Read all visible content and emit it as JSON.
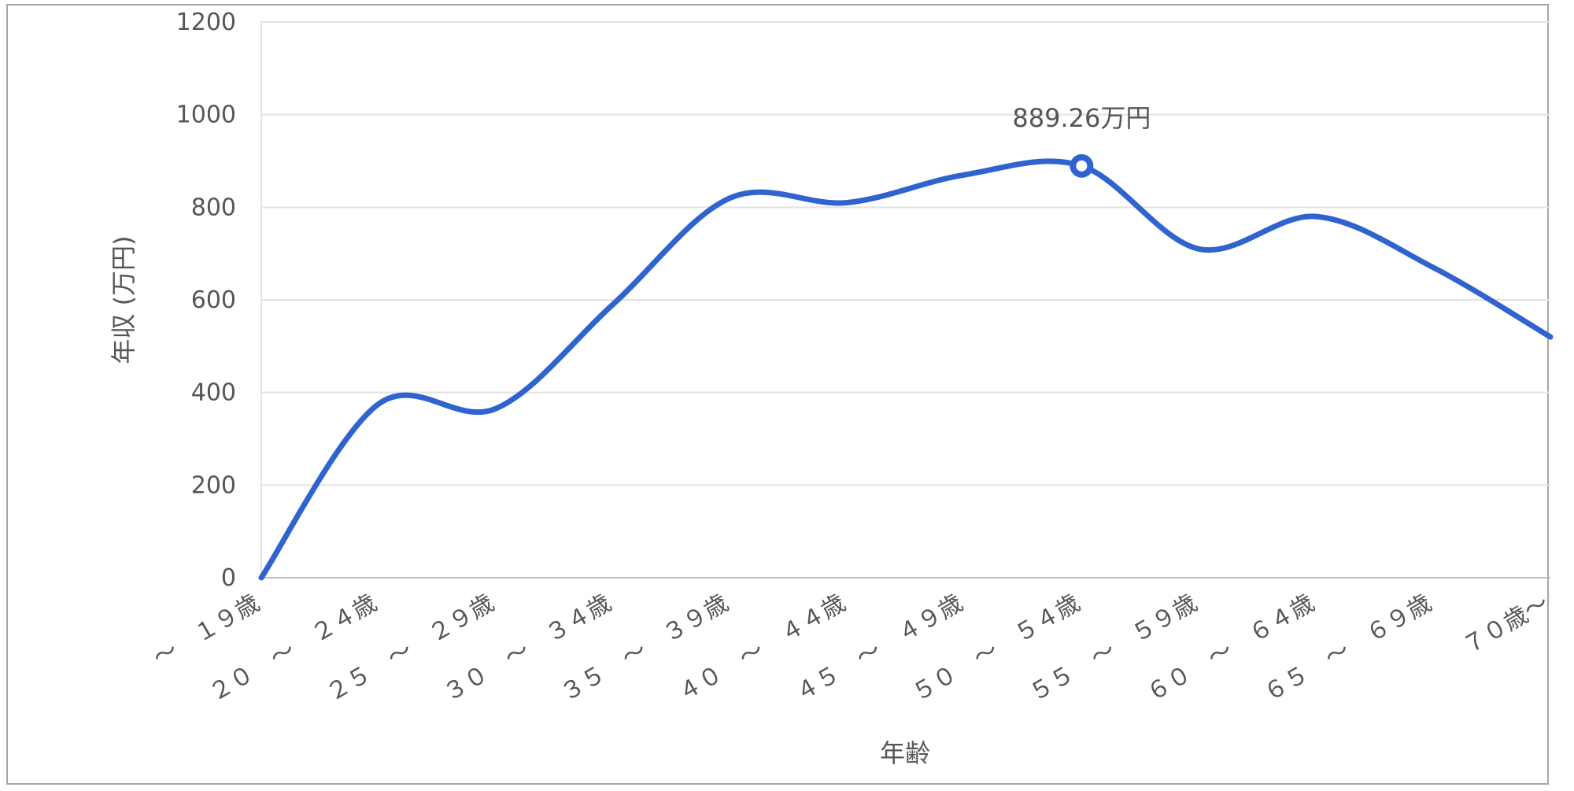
{
  "chart_data": {
    "type": "line",
    "xlabel": "年齢",
    "ylabel": "年収 (万円)",
    "ylim": [
      0,
      1200
    ],
    "yticks": [
      0,
      200,
      400,
      600,
      800,
      1000,
      1200
    ],
    "grid": true,
    "legend": "none",
    "line_color": "#2f63cf",
    "categories": [
      [
        "～　１９歳"
      ],
      [
        "２０　～　２４歳"
      ],
      [
        "２５　～　２９歳"
      ],
      [
        "３０　～　３４歳"
      ],
      [
        "３５　～　３９歳"
      ],
      [
        "４０　～　４４歳"
      ],
      [
        "４５　～　４９歳"
      ],
      [
        "５０　～　５４歳"
      ],
      [
        "５５　～　５９歳"
      ],
      [
        "６０　～　６４歳"
      ],
      [
        "６５　～　６９歳"
      ],
      [
        "７０歳～"
      ]
    ],
    "series": [
      {
        "values": [
          0,
          375,
          365,
          590,
          820,
          810,
          870,
          889.26,
          710,
          780,
          670,
          520
        ]
      }
    ],
    "annotation": {
      "index": 7,
      "text": "889.26万円"
    }
  }
}
